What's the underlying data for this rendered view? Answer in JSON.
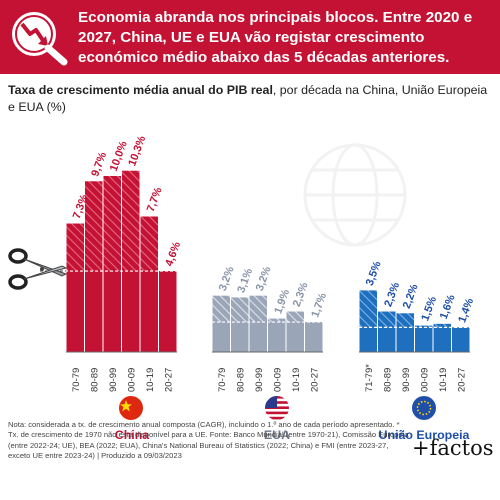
{
  "header": {
    "title": "Economia abranda nos principais blocos. Entre 2020 e 2027, China, UE e EUA vão registar crescimento económico médio abaixo das 5 décadas anteriores.",
    "accent": "#c41234"
  },
  "subtitle": {
    "bold": "Taxa de crescimento média anual do PIB real",
    "rest": ", por década na China, União Europeia e EUA (%)"
  },
  "chart_data": {
    "type": "bar",
    "categories_note": "decades",
    "groups": [
      {
        "name": "China",
        "color": "#c41234",
        "categories": [
          "70-79",
          "80-89",
          "90-99",
          "00-09",
          "10-19",
          "20-27"
        ],
        "values": [
          7.3,
          9.7,
          10.0,
          10.3,
          7.7,
          4.6
        ],
        "labels": [
          "7,3%",
          "9,7%",
          "10,0%",
          "10,3%",
          "7,7%",
          "4,6%"
        ]
      },
      {
        "name": "EUA",
        "color": "#9aa6b8",
        "categories": [
          "70-79",
          "80-89",
          "90-99",
          "00-09",
          "10-19",
          "20-27"
        ],
        "values": [
          3.2,
          3.1,
          3.2,
          1.9,
          2.3,
          1.7
        ],
        "labels": [
          "3,2%",
          "3,1%",
          "3,2%",
          "1,9%",
          "2,3%",
          "1,7%"
        ]
      },
      {
        "name": "União Europeia",
        "color": "#1f6fbf",
        "categories": [
          "71-79*",
          "80-89",
          "90-99",
          "00-09",
          "10-19",
          "20-27"
        ],
        "values": [
          3.5,
          2.3,
          2.2,
          1.5,
          1.6,
          1.4
        ],
        "labels": [
          "3,5%",
          "2,3%",
          "2,2%",
          "1,5%",
          "1,6%",
          "1,4%"
        ]
      }
    ]
  },
  "note": "Nota: considerada a tx. de crescimento anual composta (CAGR), incluindo o 1.º ano de cada período apresentado. * Tx. de crescimento de 1970 não está disponível para a UE. Fonte: Banco Mundial (entre 1970-21), Comissão Europeia (entre 2022-24; UE), BEA (2022; EUA), China's National Bureau of Statistics (2022; China) e FMI (entre 2023-27, exceto UE entre 2023-24) | Produzido a 09/03/2023",
  "brand": "+factos"
}
